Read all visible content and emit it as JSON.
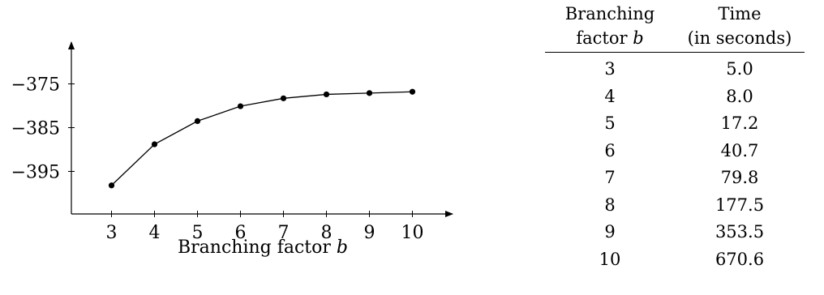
{
  "chart_data": {
    "type": "line",
    "xlabel": "Branching factor b",
    "xlabel_text": "Branching factor ",
    "xlabel_var": "b",
    "ylabel": "",
    "x": [
      3,
      4,
      5,
      6,
      7,
      8,
      9,
      10
    ],
    "series": [
      {
        "values": [
          -398.2,
          -388.8,
          -383.5,
          -380.1,
          -378.3,
          -377.4,
          -377.1,
          -376.8
        ]
      }
    ],
    "xticks": [
      "3",
      "4",
      "5",
      "6",
      "7",
      "8",
      "9",
      "10"
    ],
    "yticks": [
      -375,
      -385,
      -395
    ],
    "ytick_labels": [
      "−375",
      "−385",
      "−395"
    ],
    "xlim": [
      2,
      11
    ],
    "ylim": [
      -407.5,
      -367
    ],
    "grid": false,
    "marker": "filled-circle",
    "color": "#000000"
  },
  "table": {
    "headers": [
      [
        "Branching",
        "Time"
      ],
      [
        "factor ",
        "(in seconds)"
      ]
    ],
    "header_var": "b",
    "rows": [
      [
        "3",
        "5.0"
      ],
      [
        "4",
        "8.0"
      ],
      [
        "5",
        "17.2"
      ],
      [
        "6",
        "40.7"
      ],
      [
        "7",
        "79.8"
      ],
      [
        "8",
        "177.5"
      ],
      [
        "9",
        "353.5"
      ],
      [
        "10",
        "670.6"
      ]
    ]
  }
}
